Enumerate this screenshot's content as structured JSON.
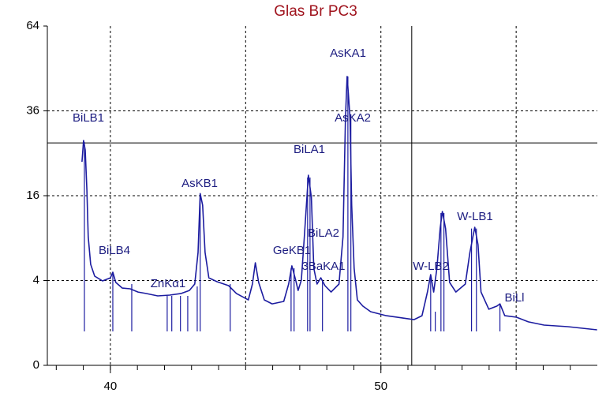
{
  "chart_data": {
    "type": "line",
    "title": "Glas Br PC3",
    "yscale": "sqrt",
    "xlim": [
      37.67,
      58
    ],
    "ylim": [
      0,
      64
    ],
    "xticks": [
      40,
      50
    ],
    "xgrid": [
      40,
      45,
      50,
      55
    ],
    "xminorticks": [
      38,
      39,
      40,
      41,
      42,
      43,
      44,
      45,
      46,
      47,
      48,
      49,
      50,
      51,
      52,
      53,
      54,
      55,
      56,
      57
    ],
    "yticks": [
      0,
      4,
      16,
      36,
      64
    ],
    "ygrid": [
      4,
      16,
      36
    ],
    "cursor": {
      "x": 51.14,
      "y": 27.5
    },
    "series": [
      {
        "color": "#1c1ca0",
        "x": [
          38.95,
          39.01,
          39.07,
          39.13,
          39.18,
          39.27,
          39.42,
          39.71,
          40,
          40.09,
          40.2,
          40.44,
          40.73,
          41.02,
          41.31,
          41.75,
          42.19,
          42.62,
          42.92,
          43.12,
          43.24,
          43.32,
          43.41,
          43.5,
          43.64,
          43.94,
          44.37,
          44.66,
          45.1,
          45.25,
          45.36,
          45.48,
          45.69,
          45.98,
          46.41,
          46.59,
          46.71,
          46.85,
          46.94,
          47.06,
          47.17,
          47.32,
          47.43,
          47.52,
          47.64,
          47.78,
          47.93,
          48.16,
          48.45,
          48.6,
          48.69,
          48.75,
          48.8,
          48.86,
          48.92,
          49.01,
          49.13,
          49.33,
          49.62,
          50.2,
          50.79,
          51.22,
          51.52,
          51.72,
          51.84,
          51.95,
          52.07,
          52.19,
          52.27,
          52.39,
          52.54,
          52.77,
          53.12,
          53.29,
          53.47,
          53.59,
          53.7,
          53.99,
          54.29,
          54.4,
          54.58,
          55.01,
          55.45,
          56.03,
          56.91,
          57.99
        ],
        "values": [
          23.04,
          28.1,
          25.8,
          17.2,
          9.2,
          5.67,
          4.42,
          3.96,
          4.26,
          4.82,
          3.82,
          3.32,
          3.26,
          2.99,
          2.87,
          2.68,
          2.74,
          2.87,
          3.12,
          3.67,
          7.08,
          16.4,
          14.26,
          7.08,
          4.26,
          3.89,
          3.53,
          2.87,
          2.38,
          3.67,
          5.85,
          3.82,
          2.38,
          2.1,
          2.27,
          3.67,
          5.5,
          4.04,
          3.12,
          4.04,
          9.2,
          20.1,
          15.7,
          5.24,
          3.67,
          4.26,
          3.53,
          2.99,
          3.67,
          9.2,
          33.9,
          46.4,
          40.7,
          33.9,
          14.26,
          5.24,
          2.38,
          1.95,
          1.6,
          1.37,
          1.25,
          1.16,
          1.37,
          2.99,
          4.58,
          2.99,
          5.24,
          10.4,
          13.16,
          10.4,
          3.82,
          2.99,
          3.67,
          7.08,
          10.6,
          8.1,
          2.99,
          1.75,
          1.95,
          2.1,
          1.37,
          1.29,
          1.05,
          0.9,
          0.83,
          0.7
        ]
      }
    ],
    "peak_lines": {
      "color": "#1c1ca0",
      "base": 0.64,
      "x": [
        39.04,
        40.09,
        40.79,
        42.1,
        42.27,
        42.59,
        42.86,
        43.21,
        43.32,
        44.43,
        46.68,
        46.79,
        47.29,
        47.38,
        47.84,
        48.78,
        48.89,
        51.84,
        52.01,
        52.22,
        52.33,
        53.35,
        53.53,
        54.4
      ],
      "values": [
        27.7,
        4.82,
        3.67,
        2.68,
        2.68,
        2.68,
        2.68,
        3.46,
        16.4,
        3.67,
        5.24,
        5.24,
        19.6,
        19.6,
        4.04,
        46.4,
        35,
        4.42,
        1.6,
        12.9,
        12.9,
        10.4,
        10.4,
        2.1
      ]
    },
    "annotations": [
      "BiLB1",
      "BiLB4",
      "ZnKα1",
      "AsKB1",
      "GeKB1",
      "BiLA1",
      "BiLA2",
      "3BaKA1",
      "AsKA1",
      "AsKA2",
      "W-LB2",
      "W-LB1",
      "BiLl"
    ]
  }
}
